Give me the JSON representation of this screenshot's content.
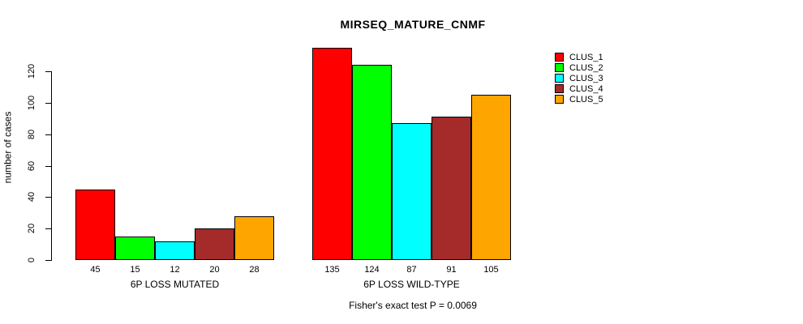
{
  "title": "MIRSEQ_MATURE_CNMF",
  "chart_data": {
    "type": "bar",
    "title": "MIRSEQ_MATURE_CNMF",
    "xlabel": "",
    "ylabel": "number of cases",
    "annotation": "Fisher's exact test P = 0.0069",
    "groups": [
      "6P LOSS MUTATED",
      "6P LOSS WILD-TYPE"
    ],
    "series": [
      {
        "name": "CLUS_1",
        "color": "#FF0000",
        "values": [
          45,
          135
        ]
      },
      {
        "name": "CLUS_2",
        "color": "#00FF00",
        "values": [
          15,
          124
        ]
      },
      {
        "name": "CLUS_3",
        "color": "#00FFFF",
        "values": [
          12,
          87
        ]
      },
      {
        "name": "CLUS_4",
        "color": "#A52A2A",
        "values": [
          20,
          91
        ]
      },
      {
        "name": "CLUS_5",
        "color": "#FFA500",
        "values": [
          28,
          105
        ]
      }
    ],
    "bar_value_labels": [
      [
        45,
        15,
        12,
        20,
        28
      ],
      [
        135,
        124,
        87,
        91,
        105
      ]
    ],
    "yticks": [
      0,
      20,
      40,
      60,
      80,
      100,
      120
    ],
    "ylim": [
      0,
      135
    ],
    "grid": false,
    "legend_position": "right",
    "bar_border_color": "#000000",
    "background_color": "#FFFFFF"
  }
}
